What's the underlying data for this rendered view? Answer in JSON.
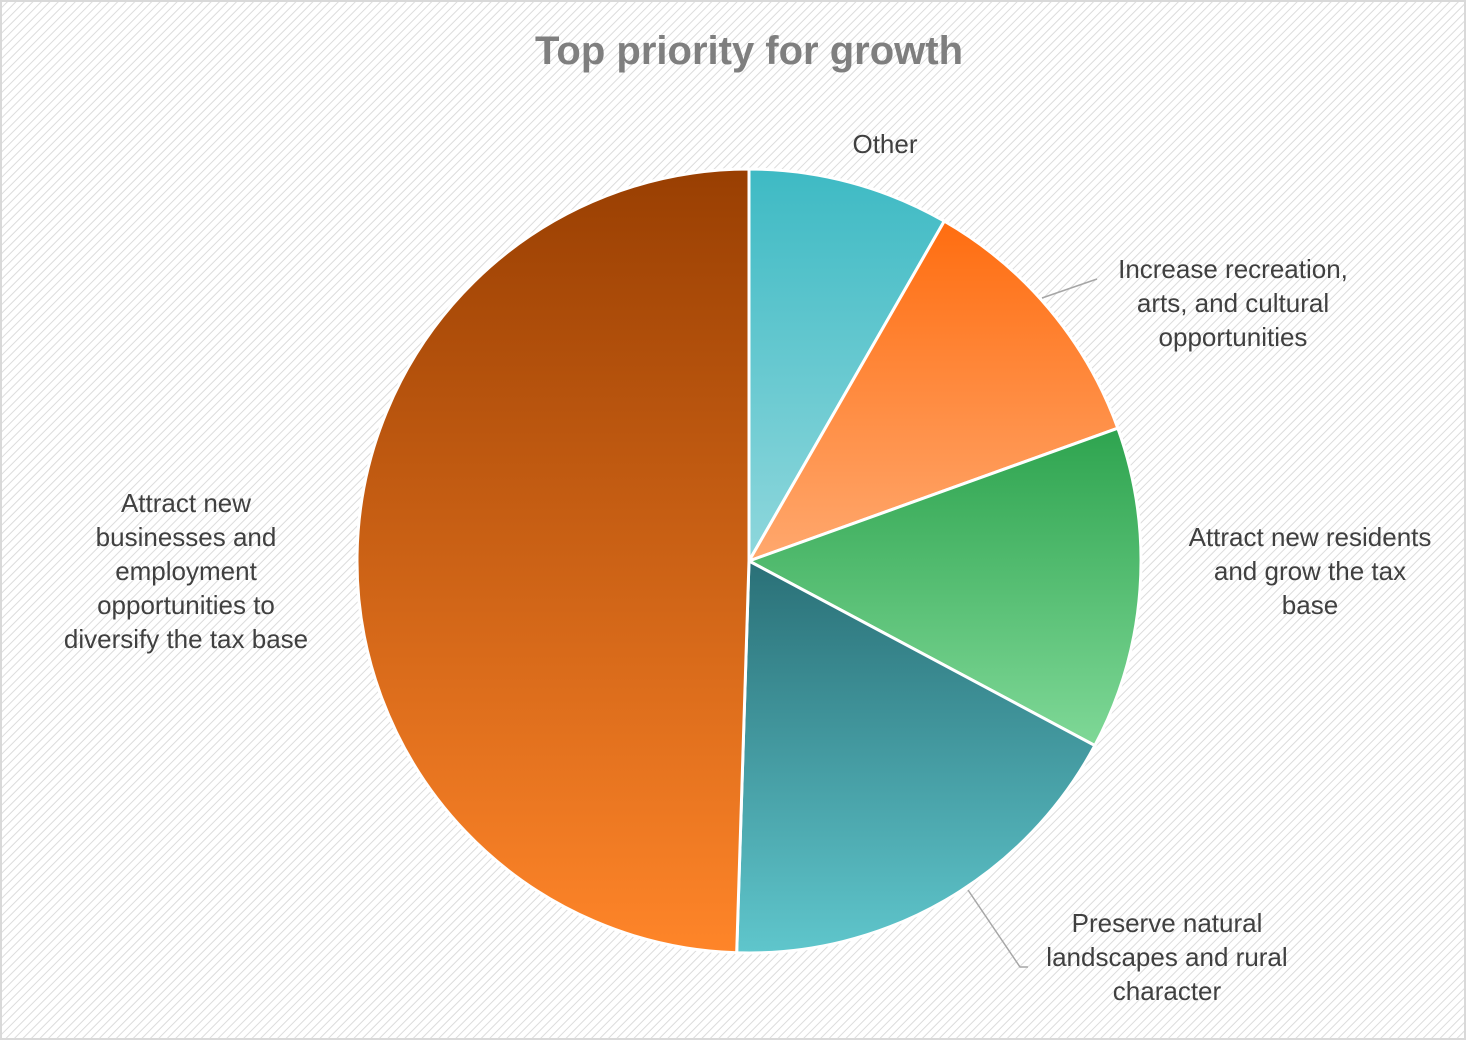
{
  "chart_data": {
    "type": "pie",
    "title": "Top priority for growth",
    "slices": [
      {
        "label": "Other",
        "value": 8.3,
        "color_top": "#3ebac4",
        "color_bottom": "#8fd7dc"
      },
      {
        "label": "Increase recreation, arts, and cultural opportunities",
        "value": 11.2,
        "color_top": "#ff6d10",
        "color_bottom": "#ffa86e"
      },
      {
        "label": "Attract new residents and grow the tax base",
        "value": 13.3,
        "color_top": "#2ea44f",
        "color_bottom": "#7fd897"
      },
      {
        "label": "Preserve natural landscapes and rural character",
        "value": 17.7,
        "color_top": "#2a7077",
        "color_bottom": "#5fc6cc"
      },
      {
        "label": "Attract new businesses and employment opportunities to diversify the tax base",
        "value": 49.5,
        "color_top": "#993f02",
        "color_bottom": "#ff8529"
      }
    ],
    "legend": "none",
    "data_labels": "category name"
  }
}
